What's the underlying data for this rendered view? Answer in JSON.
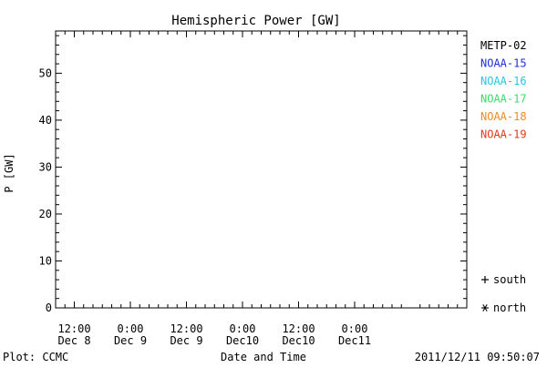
{
  "chart_data": {
    "type": "scatter",
    "title": "Hemispheric Power [GW]",
    "ylabel": "P [GW]",
    "xlabel": "Date and Time",
    "ylim": [
      0,
      59
    ],
    "xlim_hours": [
      -4,
      84
    ],
    "yticks": [
      0,
      10,
      20,
      30,
      40,
      50
    ],
    "xticks": [
      {
        "hour": 0,
        "time": "12:00",
        "date": "Dec 8"
      },
      {
        "hour": 12,
        "time": "0:00",
        "date": "Dec 9"
      },
      {
        "hour": 24,
        "time": "12:00",
        "date": "Dec 9"
      },
      {
        "hour": 36,
        "time": "0:00",
        "date": "Dec10"
      },
      {
        "hour": 48,
        "time": "12:00",
        "date": "Dec10"
      },
      {
        "hour": 60,
        "time": "0:00",
        "date": "Dec11"
      }
    ],
    "legend_position": "right",
    "series": [
      {
        "name": "METP-02",
        "color": "#000000"
      },
      {
        "name": "NOAA-15",
        "color": "#1f2fd8"
      },
      {
        "name": "NOAA-16",
        "color": "#25c7e0"
      },
      {
        "name": "NOAA-17",
        "color": "#33e06a"
      },
      {
        "name": "NOAA-18",
        "color": "#f08a22"
      },
      {
        "name": "NOAA-19",
        "color": "#e03a1a"
      }
    ],
    "marker_legend": [
      {
        "symbol": "+",
        "label": "south"
      },
      {
        "symbol": "*",
        "label": "north"
      }
    ]
  },
  "footer": {
    "plot_credit": "Plot: CCMC",
    "timestamp": "2011/12/11 09:50:07"
  }
}
